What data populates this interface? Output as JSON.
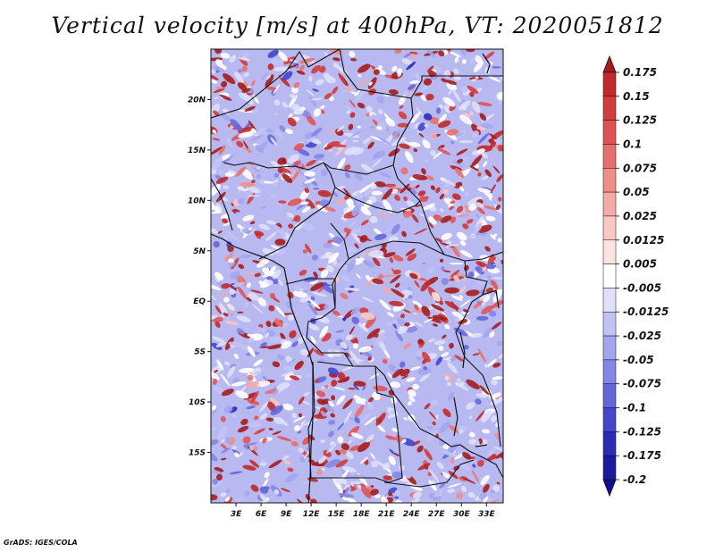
{
  "title": "Vertical velocity [m/s] at 400hPa, VT: 2020051812",
  "credit": "GrADS: IGES/COLA",
  "map": {
    "lon_range": [
      0,
      35
    ],
    "lat_range": [
      -20,
      25
    ],
    "lat_ticks": [
      {
        "label": "20N",
        "value": 20
      },
      {
        "label": "15N",
        "value": 15
      },
      {
        "label": "10N",
        "value": 10
      },
      {
        "label": "5N",
        "value": 5
      },
      {
        "label": "EQ",
        "value": 0
      },
      {
        "label": "5S",
        "value": -5
      },
      {
        "label": "10S",
        "value": -10
      },
      {
        "label": "15S",
        "value": -15
      }
    ],
    "lon_ticks": [
      {
        "label": "3E",
        "value": 3
      },
      {
        "label": "6E",
        "value": 6
      },
      {
        "label": "9E",
        "value": 9
      },
      {
        "label": "12E",
        "value": 12
      },
      {
        "label": "15E",
        "value": 15
      },
      {
        "label": "18E",
        "value": 18
      },
      {
        "label": "21E",
        "value": 21
      },
      {
        "label": "24E",
        "value": 24
      },
      {
        "label": "27E",
        "value": 27
      },
      {
        "label": "30E",
        "value": 30
      },
      {
        "label": "33E",
        "value": 33
      }
    ]
  },
  "colorbar": {
    "levels": [
      "0.175",
      "0.15",
      "0.125",
      "0.1",
      "0.075",
      "0.05",
      "0.025",
      "0.0125",
      "0.005",
      "-0.005",
      "-0.0125",
      "-0.025",
      "-0.05",
      "-0.075",
      "-0.1",
      "-0.125",
      "-0.175",
      "-0.2"
    ],
    "colors": [
      "#a51d1d",
      "#c02a2a",
      "#d33c3c",
      "#e05353",
      "#e8706c",
      "#ef8e89",
      "#f5aaa6",
      "#fac7c3",
      "#fde3e0",
      "#ffffff",
      "#e0e0fa",
      "#c2c3f5",
      "#a3a5ef",
      "#8486e6",
      "#6467da",
      "#4447cc",
      "#2a2cb8",
      "#1a1aa0",
      "#10108a"
    ]
  }
}
